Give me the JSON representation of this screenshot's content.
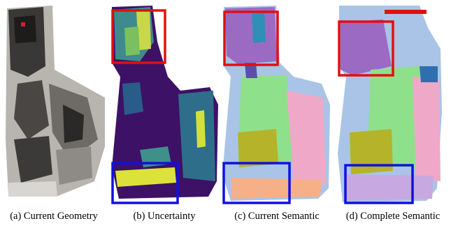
{
  "panels": [
    {
      "caption": "(a) Current Geometry"
    },
    {
      "caption": "(b) Uncertainty"
    },
    {
      "caption": "(c) Current Semantic"
    },
    {
      "caption": "(d) Complete Semantic"
    }
  ]
}
